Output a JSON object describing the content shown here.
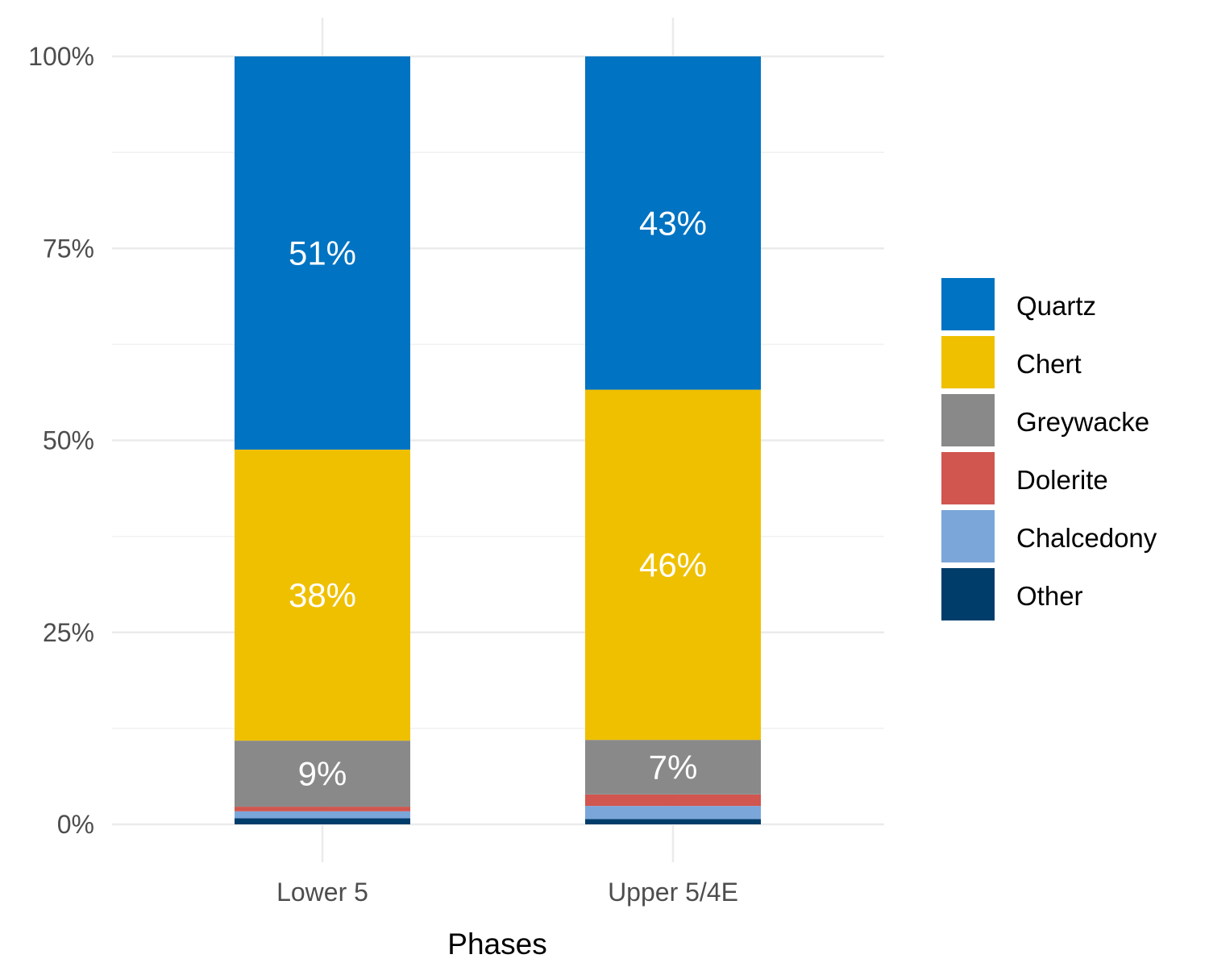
{
  "chart_data": {
    "type": "bar",
    "stacked": true,
    "categories": [
      "Lower 5",
      "Upper 5/4E"
    ],
    "series": [
      {
        "name": "Other",
        "color": "#003d6b",
        "values": [
          0.8,
          0.7
        ]
      },
      {
        "name": "Chalcedony",
        "color": "#7ba6da",
        "values": [
          0.9,
          1.7
        ]
      },
      {
        "name": "Dolerite",
        "color": "#d0564f",
        "values": [
          0.6,
          1.5
        ]
      },
      {
        "name": "Greywacke",
        "color": "#898989",
        "values": [
          8.6,
          7.1
        ]
      },
      {
        "name": "Chert",
        "color": "#efc000",
        "values": [
          37.9,
          45.6
        ]
      },
      {
        "name": "Quartz",
        "color": "#0073c2",
        "values": [
          51.2,
          43.4
        ]
      }
    ],
    "bar_labels": [
      {
        "series": "Greywacke",
        "labels": [
          "9%",
          "7%"
        ]
      },
      {
        "series": "Chert",
        "labels": [
          "38%",
          "46%"
        ]
      },
      {
        "series": "Quartz",
        "labels": [
          "51%",
          "43%"
        ]
      }
    ],
    "legend_order": [
      "Quartz",
      "Chert",
      "Greywacke",
      "Dolerite",
      "Chalcedony",
      "Other"
    ],
    "ylim": [
      0,
      100
    ],
    "yticks": [
      0,
      25,
      50,
      75,
      100
    ],
    "ytick_labels": [
      "0%",
      "25%",
      "50%",
      "75%",
      "100%"
    ],
    "xlabel": "Phases",
    "ylabel": "",
    "title": "",
    "grid": true,
    "legend_position": "right"
  }
}
